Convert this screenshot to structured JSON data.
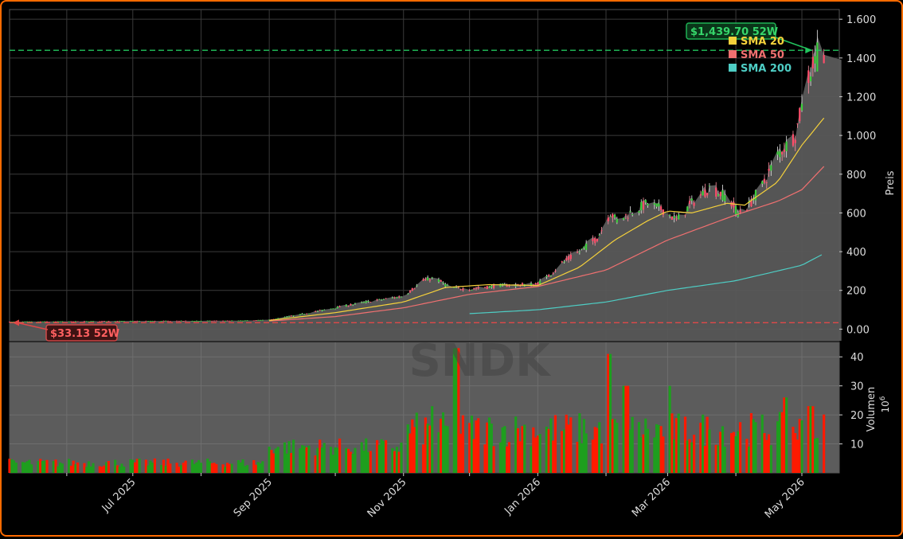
{
  "chart_data": {
    "type": "candlestick",
    "ticker_watermark": "SNDK",
    "price_axis": {
      "label": "Preis",
      "ylim": [
        -60,
        1650
      ],
      "ticks": [
        0,
        200,
        400,
        600,
        800,
        1000,
        1200,
        1400,
        1600
      ],
      "tick_labels": [
        "0.00",
        "200",
        "400",
        "600",
        "800",
        "1.000",
        "1.200",
        "1.400",
        "1.600"
      ]
    },
    "volume_axis": {
      "label": "Volumen",
      "multiplier_label": "10",
      "multiplier_exp": "6",
      "ylim": [
        0,
        45
      ],
      "ticks": [
        10,
        20,
        30,
        40
      ],
      "tick_labels": [
        "10",
        "20",
        "30",
        "40"
      ]
    },
    "x_axis": {
      "range": [
        "2025-05-06",
        "2026-05-18"
      ],
      "ticks": [
        "2025-06-01",
        "2025-07-01",
        "2025-08-01",
        "2025-09-01",
        "2025-10-01",
        "2025-11-01",
        "2025-12-01",
        "2026-01-01",
        "2026-02-01",
        "2026-03-01",
        "2026-04-01",
        "2026-05-01"
      ],
      "labeled_ticks": [
        {
          "date": "2025-07-01",
          "label": "Jul 2025"
        },
        {
          "date": "2025-09-01",
          "label": "Sep 2025"
        },
        {
          "date": "2025-11-01",
          "label": "Nov 2025"
        },
        {
          "date": "2026-01-01",
          "label": "Jan 2026"
        },
        {
          "date": "2026-03-01",
          "label": "Mar 2026"
        },
        {
          "date": "2026-05-01",
          "label": "May 2026"
        }
      ]
    },
    "high_52w": {
      "value": 1439.7,
      "label": "$1,439.70 52W",
      "color": "#22c55e"
    },
    "low_52w": {
      "value": 33.13,
      "label": "$33.13 52W",
      "color": "#e04848"
    },
    "legend": [
      {
        "label": "SMA 20",
        "color": "#f5d13b"
      },
      {
        "label": "SMA 50",
        "color": "#f07070"
      },
      {
        "label": "SMA 200",
        "color": "#4ecdc4"
      }
    ],
    "colors": {
      "up": "#1e9e1e",
      "down": "#ff1a00",
      "area": "#5a5a5a",
      "grid": "#3a3a3a"
    },
    "price_anchors": [
      [
        "2025-05-06",
        38
      ],
      [
        "2025-06-01",
        40
      ],
      [
        "2025-07-01",
        42
      ],
      [
        "2025-08-01",
        43
      ],
      [
        "2025-08-20",
        44
      ],
      [
        "2025-09-01",
        48
      ],
      [
        "2025-09-15",
        75
      ],
      [
        "2025-10-01",
        110
      ],
      [
        "2025-10-15",
        140
      ],
      [
        "2025-11-01",
        170
      ],
      [
        "2025-11-10",
        250
      ],
      [
        "2025-11-15",
        265
      ],
      [
        "2025-11-22",
        215
      ],
      [
        "2025-12-01",
        205
      ],
      [
        "2025-12-15",
        225
      ],
      [
        "2025-12-31",
        230
      ],
      [
        "2026-01-05",
        265
      ],
      [
        "2026-01-12",
        340
      ],
      [
        "2026-01-20",
        400
      ],
      [
        "2026-01-28",
        470
      ],
      [
        "2026-02-03",
        600
      ],
      [
        "2026-02-06",
        560
      ],
      [
        "2026-02-12",
        600
      ],
      [
        "2026-02-20",
        650
      ],
      [
        "2026-02-28",
        610
      ],
      [
        "2026-03-05",
        560
      ],
      [
        "2026-03-12",
        650
      ],
      [
        "2026-03-20",
        730
      ],
      [
        "2026-03-28",
        680
      ],
      [
        "2026-04-02",
        600
      ],
      [
        "2026-04-07",
        640
      ],
      [
        "2026-04-14",
        760
      ],
      [
        "2026-04-20",
        900
      ],
      [
        "2026-04-28",
        1000
      ],
      [
        "2026-05-04",
        1300
      ],
      [
        "2026-05-08",
        1420
      ],
      [
        "2026-05-11",
        1390
      ]
    ],
    "sma20_anchors": [
      [
        "2025-09-01",
        45
      ],
      [
        "2025-10-01",
        85
      ],
      [
        "2025-11-01",
        140
      ],
      [
        "2025-11-20",
        215
      ],
      [
        "2025-12-10",
        230
      ],
      [
        "2026-01-01",
        225
      ],
      [
        "2026-01-20",
        320
      ],
      [
        "2026-02-05",
        460
      ],
      [
        "2026-02-20",
        560
      ],
      [
        "2026-03-01",
        610
      ],
      [
        "2026-03-12",
        600
      ],
      [
        "2026-03-28",
        650
      ],
      [
        "2026-04-05",
        640
      ],
      [
        "2026-04-20",
        760
      ],
      [
        "2026-05-01",
        950
      ],
      [
        "2026-05-11",
        1090
      ]
    ],
    "sma50_anchors": [
      [
        "2025-09-01",
        42
      ],
      [
        "2025-10-01",
        65
      ],
      [
        "2025-11-01",
        110
      ],
      [
        "2025-12-01",
        180
      ],
      [
        "2026-01-01",
        220
      ],
      [
        "2026-02-01",
        305
      ],
      [
        "2026-03-01",
        460
      ],
      [
        "2026-04-01",
        590
      ],
      [
        "2026-04-20",
        660
      ],
      [
        "2026-05-01",
        720
      ],
      [
        "2026-05-11",
        840
      ]
    ],
    "sma200_anchors": [
      [
        "2025-12-01",
        80
      ],
      [
        "2026-01-01",
        100
      ],
      [
        "2026-02-01",
        140
      ],
      [
        "2026-03-01",
        200
      ],
      [
        "2026-04-01",
        250
      ],
      [
        "2026-05-01",
        330
      ],
      [
        "2026-05-11",
        390
      ]
    ],
    "volume_spikes": [
      [
        "2025-11-15",
        23
      ],
      [
        "2025-11-25",
        43
      ],
      [
        "2026-02-02",
        41
      ],
      [
        "2026-02-10",
        30
      ],
      [
        "2026-03-01",
        30
      ],
      [
        "2026-04-24",
        26
      ],
      [
        "2026-05-05",
        23
      ]
    ]
  }
}
